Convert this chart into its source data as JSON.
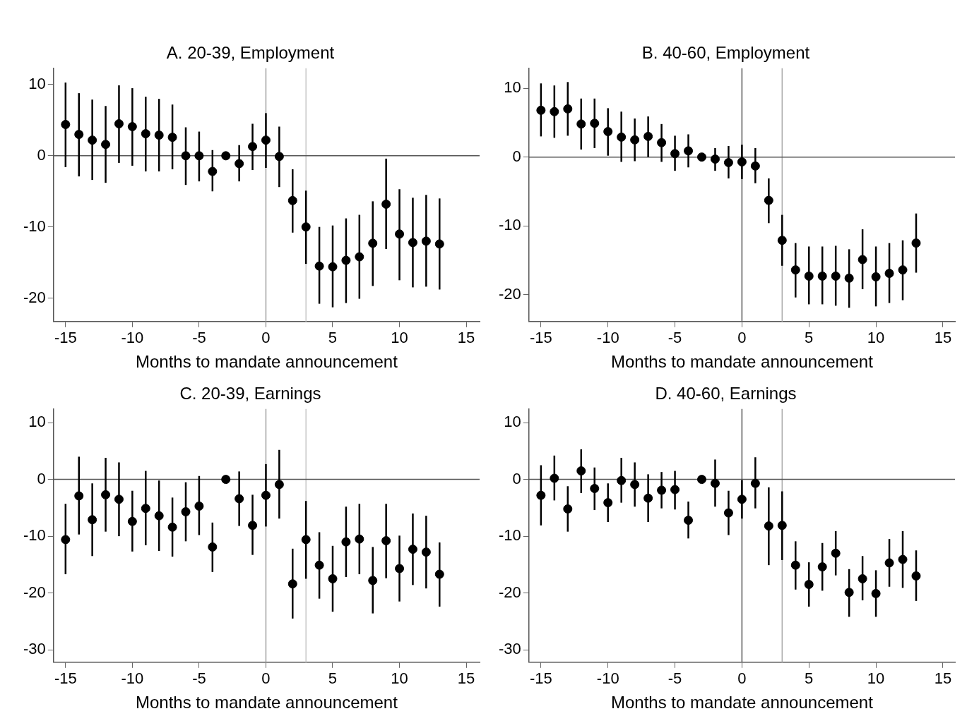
{
  "chart_data": [
    {
      "type": "scatter",
      "title": "A. 20-39, Employment",
      "xlabel": "Months to mandate announcement",
      "color": "#000000",
      "marker": "circle",
      "grid": false,
      "x": [
        -15,
        -14,
        -13,
        -12,
        -11,
        -10,
        -9,
        -8,
        -7,
        -6,
        -5,
        -4,
        -3,
        -2,
        -1,
        0,
        1,
        2,
        3,
        4,
        5,
        6,
        7,
        8,
        9,
        10,
        11,
        12,
        13
      ],
      "values": [
        4.4,
        3.0,
        2.2,
        1.6,
        4.5,
        4.1,
        3.1,
        2.9,
        2.6,
        0,
        0,
        -2.2,
        0,
        -1.1,
        1.3,
        2.2,
        -0.1,
        -6.3,
        -10.0,
        -15.5,
        -15.6,
        -14.7,
        -14.2,
        -12.3,
        -6.8,
        -11.0,
        -12.2,
        -12.0,
        -12.4
      ],
      "errors": [
        [
          -1.6,
          10.3
        ],
        [
          -2.9,
          8.8
        ],
        [
          -3.4,
          7.9
        ],
        [
          -3.8,
          7.0
        ],
        [
          -1.0,
          9.9
        ],
        [
          -1.4,
          9.5
        ],
        [
          -2.2,
          8.3
        ],
        [
          -2.2,
          8.0
        ],
        [
          -1.9,
          7.2
        ],
        [
          -4.1,
          4.0
        ],
        [
          -3.6,
          3.4
        ],
        [
          -5.0,
          0.8
        ],
        null,
        [
          -3.6,
          1.5
        ],
        [
          -2.0,
          4.5
        ],
        [
          -1.7,
          6.0
        ],
        [
          -4.4,
          4.1
        ],
        [
          -10.8,
          -1.9
        ],
        [
          -15.2,
          -4.9
        ],
        [
          -20.8,
          -10.0
        ],
        [
          -21.3,
          -9.8
        ],
        [
          -20.7,
          -8.8
        ],
        [
          -20.1,
          -8.3
        ],
        [
          -18.3,
          -6.4
        ],
        [
          -13.1,
          -0.4
        ],
        [
          -17.5,
          -4.7
        ],
        [
          -18.5,
          -5.9
        ],
        [
          -18.4,
          -5.5
        ],
        [
          -18.8,
          -6.0
        ]
      ],
      "xlim": [
        -15.9,
        16
      ],
      "xticks": [
        -15,
        -10,
        -5,
        0,
        5,
        10,
        15
      ],
      "ylim": [
        -23.3,
        12.3
      ],
      "yticks": [
        -20,
        -10,
        0,
        10
      ],
      "ref_lines": [
        {
          "axis": "x",
          "value": 0,
          "color": "#a0a0a0"
        },
        {
          "axis": "x",
          "value": 3,
          "color": "#c8c8c8"
        },
        {
          "axis": "y",
          "value": 0,
          "color": "#555555"
        }
      ]
    },
    {
      "type": "scatter",
      "title": "B. 40-60, Employment",
      "xlabel": "Months to mandate announcement",
      "color": "#000000",
      "marker": "circle",
      "grid": false,
      "x": [
        -15,
        -14,
        -13,
        -12,
        -11,
        -10,
        -9,
        -8,
        -7,
        -6,
        -5,
        -4,
        -3,
        -2,
        -1,
        0,
        1,
        2,
        3,
        4,
        5,
        6,
        7,
        8,
        9,
        10,
        11,
        12,
        13
      ],
      "values": [
        6.8,
        6.6,
        7.0,
        4.8,
        4.9,
        3.7,
        2.9,
        2.5,
        3.0,
        2.1,
        0.5,
        0.9,
        0,
        -0.3,
        -0.8,
        -0.7,
        -1.3,
        -6.3,
        -12.1,
        -16.4,
        -17.3,
        -17.3,
        -17.3,
        -17.6,
        -14.9,
        -17.4,
        -16.9,
        -16.4,
        -12.5
      ],
      "errors": [
        [
          3.0,
          10.7
        ],
        [
          2.8,
          10.4
        ],
        [
          3.1,
          10.9
        ],
        [
          1.1,
          8.5
        ],
        [
          1.3,
          8.5
        ],
        [
          0.2,
          7.1
        ],
        [
          -0.7,
          6.6
        ],
        [
          -0.6,
          5.6
        ],
        [
          0,
          5.9
        ],
        [
          -0.7,
          4.8
        ],
        [
          -2.0,
          3.1
        ],
        [
          -1.5,
          3.3
        ],
        null,
        [
          -2.0,
          1.3
        ],
        [
          -3.1,
          1.6
        ],
        [
          -3.2,
          1.8
        ],
        [
          -3.8,
          1.3
        ],
        [
          -9.6,
          -3.1
        ],
        [
          -15.8,
          -8.4
        ],
        [
          -20.4,
          -12.5
        ],
        [
          -21.4,
          -13.0
        ],
        [
          -21.4,
          -13.0
        ],
        [
          -21.6,
          -12.9
        ],
        [
          -21.9,
          -13.4
        ],
        [
          -19.2,
          -10.5
        ],
        [
          -21.7,
          -13.0
        ],
        [
          -21.2,
          -12.5
        ],
        [
          -20.8,
          -12.1
        ],
        [
          -16.8,
          -8.2
        ]
      ],
      "xlim": [
        -15.9,
        15.9
      ],
      "xticks": [
        -15,
        -10,
        -5,
        0,
        5,
        10,
        15
      ],
      "ylim": [
        -23.9,
        12.9
      ],
      "yticks": [
        -20,
        -10,
        0,
        10
      ],
      "ref_lines": [
        {
          "axis": "x",
          "value": 0,
          "color": "#555555"
        },
        {
          "axis": "x",
          "value": 3,
          "color": "#aaaaaa"
        },
        {
          "axis": "y",
          "value": 0,
          "color": "#555555"
        }
      ]
    },
    {
      "type": "scatter",
      "title": "C. 20-39, Earnings",
      "xlabel": "Months to mandate announcement",
      "color": "#000000",
      "marker": "circle",
      "grid": false,
      "x": [
        -15,
        -14,
        -13,
        -12,
        -11,
        -10,
        -9,
        -8,
        -7,
        -6,
        -5,
        -4,
        -3,
        -2,
        -1,
        0,
        1,
        2,
        3,
        4,
        5,
        6,
        7,
        8,
        9,
        10,
        11,
        12,
        13
      ],
      "values": [
        -10.6,
        -2.9,
        -7.1,
        -2.7,
        -3.5,
        -7.4,
        -5.1,
        -6.4,
        -8.4,
        -5.7,
        -4.7,
        -11.9,
        0,
        -3.4,
        -8.1,
        -2.8,
        -0.9,
        -18.4,
        -10.6,
        -15.1,
        -17.5,
        -11.0,
        -10.5,
        -17.8,
        -10.8,
        -15.7,
        -12.3,
        -12.8,
        -16.7
      ],
      "errors": [
        [
          -16.7,
          -4.3
        ],
        [
          -9.7,
          4.0
        ],
        [
          -13.5,
          -0.7
        ],
        [
          -9.2,
          3.8
        ],
        [
          -10.0,
          3.0
        ],
        [
          -12.7,
          -2.0
        ],
        [
          -11.6,
          1.5
        ],
        [
          -12.6,
          -0.2
        ],
        [
          -13.6,
          -3.2
        ],
        [
          -10.9,
          -0.5
        ],
        [
          -9.8,
          0.6
        ],
        [
          -16.3,
          -7.6
        ],
        null,
        [
          -8.2,
          1.4
        ],
        [
          -13.3,
          -2.7
        ],
        [
          -8.3,
          2.7
        ],
        [
          -6.9,
          5.2
        ],
        [
          -24.5,
          -12.2
        ],
        [
          -17.5,
          -3.8
        ],
        [
          -21.0,
          -9.3
        ],
        [
          -23.3,
          -11.7
        ],
        [
          -17.2,
          -4.8
        ],
        [
          -16.7,
          -4.3
        ],
        [
          -23.6,
          -11.9
        ],
        [
          -17.4,
          -4.3
        ],
        [
          -21.5,
          -9.9
        ],
        [
          -18.6,
          -6.0
        ],
        [
          -19.2,
          -6.4
        ],
        [
          -22.4,
          -11.1
        ]
      ],
      "xlim": [
        -15.9,
        16
      ],
      "xticks": [
        -15,
        -10,
        -5,
        0,
        5,
        10,
        15
      ],
      "ylim": [
        -32.2,
        12.4
      ],
      "yticks": [
        -30,
        -20,
        -10,
        0,
        10
      ],
      "ref_lines": [
        {
          "axis": "x",
          "value": 0,
          "color": "#a0a0a0"
        },
        {
          "axis": "x",
          "value": 3,
          "color": "#c8c8c8"
        },
        {
          "axis": "y",
          "value": 0,
          "color": "#555555"
        }
      ]
    },
    {
      "type": "scatter",
      "title": "D. 40-60, Earnings",
      "xlabel": "Months to mandate announcement",
      "color": "#000000",
      "marker": "circle",
      "grid": false,
      "x": [
        -15,
        -14,
        -13,
        -12,
        -11,
        -10,
        -9,
        -8,
        -7,
        -6,
        -5,
        -4,
        -3,
        -2,
        -1,
        0,
        1,
        2,
        3,
        4,
        5,
        6,
        7,
        8,
        9,
        10,
        11,
        12,
        13
      ],
      "values": [
        -2.8,
        0.2,
        -5.2,
        1.5,
        -1.6,
        -4.1,
        -0.2,
        -0.9,
        -3.3,
        -1.9,
        -1.8,
        -7.2,
        0,
        -0.7,
        -5.9,
        -3.5,
        -0.7,
        -8.2,
        -8.1,
        -15.1,
        -18.5,
        -15.4,
        -13.0,
        -19.9,
        -17.5,
        -20.1,
        -14.7,
        -14.1,
        -17.0
      ],
      "errors": [
        [
          -8.1,
          2.5
        ],
        [
          -3.7,
          4.2
        ],
        [
          -9.2,
          -1.2
        ],
        [
          -2.4,
          5.3
        ],
        [
          -5.4,
          2.1
        ],
        [
          -7.5,
          -0.7
        ],
        [
          -4.1,
          3.8
        ],
        [
          -4.8,
          3.0
        ],
        [
          -7.5,
          0.9
        ],
        [
          -5.1,
          1.3
        ],
        [
          -5.3,
          1.5
        ],
        [
          -10.4,
          -3.9
        ],
        null,
        [
          -4.8,
          3.5
        ],
        [
          -9.8,
          -2.0
        ],
        [
          -6.9,
          -0.1
        ],
        [
          -5.1,
          3.9
        ],
        [
          -15.1,
          -1.4
        ],
        [
          -14.2,
          -2.1
        ],
        [
          -19.4,
          -10.9
        ],
        [
          -22.4,
          -14.6
        ],
        [
          -19.6,
          -11.2
        ],
        [
          -16.9,
          -9.1
        ],
        [
          -24.2,
          -15.8
        ],
        [
          -21.3,
          -13.5
        ],
        [
          -24.2,
          -16.0
        ],
        [
          -18.9,
          -10.5
        ],
        [
          -19.1,
          -9.1
        ],
        [
          -21.4,
          -12.5
        ]
      ],
      "xlim": [
        -15.9,
        15.9
      ],
      "xticks": [
        -15,
        -10,
        -5,
        0,
        5,
        10,
        15
      ],
      "ylim": [
        -32.2,
        12.4
      ],
      "yticks": [
        -30,
        -20,
        -10,
        0,
        10
      ],
      "ref_lines": [
        {
          "axis": "x",
          "value": 0,
          "color": "#555555"
        },
        {
          "axis": "x",
          "value": 3,
          "color": "#aaaaaa"
        },
        {
          "axis": "y",
          "value": 0,
          "color": "#555555"
        }
      ]
    }
  ]
}
